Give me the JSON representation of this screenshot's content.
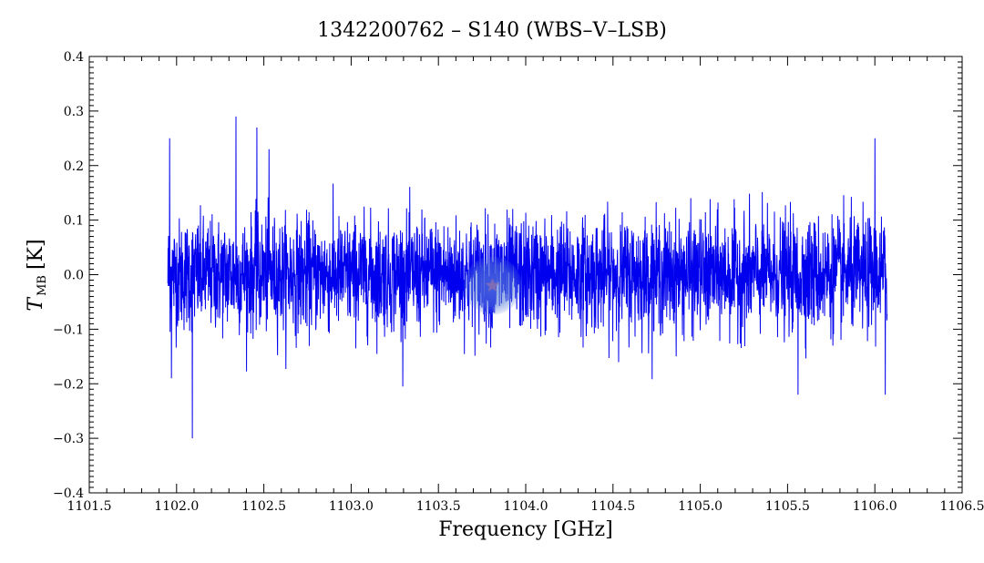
{
  "chart_data": {
    "type": "line",
    "title": "1342200762 – S140 (WBS–V–LSB)",
    "xlabel": "Frequency [GHz]",
    "ylabel_main": "T",
    "ylabel_sub": "MB",
    "ylabel_unit": "[K]",
    "xlim": [
      1101.5,
      1106.5
    ],
    "ylim": [
      -0.4,
      0.4
    ],
    "x_ticks": [
      1101.5,
      1102.0,
      1102.5,
      1103.0,
      1103.5,
      1104.0,
      1104.5,
      1105.0,
      1105.5,
      1106.0,
      1106.5
    ],
    "x_tick_labels": [
      "1101.5",
      "1102.0",
      "1102.5",
      "1103.0",
      "1103.5",
      "1104.0",
      "1104.5",
      "1105.0",
      "1105.5",
      "1106.0",
      "1106.5"
    ],
    "y_ticks": [
      -0.4,
      -0.3,
      -0.2,
      -0.1,
      0.0,
      0.1,
      0.2,
      0.3,
      0.4
    ],
    "y_tick_labels": [
      "−0.4",
      "−0.3",
      "−0.2",
      "−0.1",
      "0.0",
      "0.1",
      "0.2",
      "0.3",
      "0.4"
    ],
    "grid": false,
    "series": [
      {
        "color": "#0000ee",
        "x_start": 1101.95,
        "x_end": 1106.07,
        "noise_rms": 0.06,
        "baseline": 0.0,
        "notable_points": [
          {
            "x": 1101.96,
            "y": 0.25
          },
          {
            "x": 1101.97,
            "y": -0.19
          },
          {
            "x": 1102.09,
            "y": -0.3
          },
          {
            "x": 1102.34,
            "y": 0.29
          },
          {
            "x": 1102.46,
            "y": 0.27
          },
          {
            "x": 1102.53,
            "y": 0.23
          },
          {
            "x": 1105.56,
            "y": -0.22
          },
          {
            "x": 1106.0,
            "y": 0.25
          },
          {
            "x": 1106.06,
            "y": -0.22
          }
        ]
      }
    ],
    "marker": {
      "x": 1103.81,
      "y": -0.02,
      "color": "#5b7fd6"
    }
  }
}
